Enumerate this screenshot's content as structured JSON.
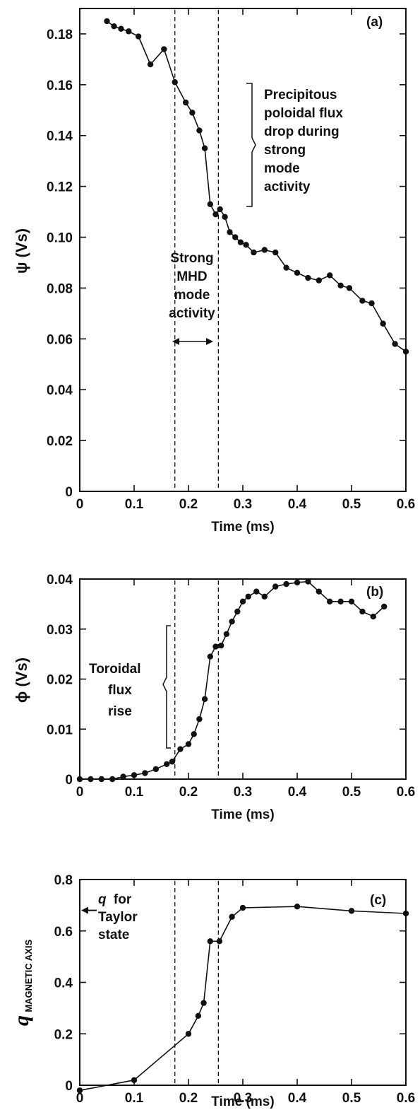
{
  "chart_data": [
    {
      "type": "line",
      "panel_label": "(a)",
      "ylabel": "ψ (Vs)",
      "xlabel": "Time (ms)",
      "xlim": [
        0,
        0.6
      ],
      "ylim": [
        0,
        0.19
      ],
      "xticks": [
        "0",
        "0.1",
        "0.2",
        "0.3",
        "0.4",
        "0.5",
        "0.6"
      ],
      "yticks": [
        "0",
        "0.02",
        "0.04",
        "0.06",
        "0.08",
        "0.10",
        "0.12",
        "0.14",
        "0.16",
        "0.18"
      ],
      "vlines": [
        0.175,
        0.255
      ],
      "annotations": {
        "right_brace_text": [
          "Precipitous",
          "poloidal flux",
          "drop during",
          "strong",
          "mode",
          "activity"
        ],
        "center_text": [
          "Strong",
          "MHD",
          "mode",
          "activity"
        ]
      },
      "series": [
        {
          "x": [
            0.05,
            0.063,
            0.076,
            0.09,
            0.108,
            0.13,
            0.155,
            0.175,
            0.195,
            0.207,
            0.22,
            0.23,
            0.24,
            0.25,
            0.258,
            0.267,
            0.276,
            0.286,
            0.296,
            0.306,
            0.32,
            0.34,
            0.36,
            0.38,
            0.4,
            0.42,
            0.44,
            0.46,
            0.48,
            0.496,
            0.52,
            0.537,
            0.558,
            0.58,
            0.6
          ],
          "y": [
            0.185,
            0.183,
            0.182,
            0.181,
            0.179,
            0.168,
            0.174,
            0.161,
            0.153,
            0.149,
            0.142,
            0.135,
            0.113,
            0.109,
            0.111,
            0.108,
            0.102,
            0.1,
            0.098,
            0.097,
            0.094,
            0.095,
            0.094,
            0.088,
            0.086,
            0.084,
            0.083,
            0.085,
            0.081,
            0.08,
            0.075,
            0.074,
            0.066,
            0.058,
            0.055
          ]
        }
      ]
    },
    {
      "type": "line",
      "panel_label": "(b)",
      "ylabel": "ϕ (Vs)",
      "xlabel": "Time (ms)",
      "xlim": [
        0,
        0.6
      ],
      "ylim": [
        0,
        0.04
      ],
      "xticks": [
        "0",
        "0.1",
        "0.2",
        "0.3",
        "0.4",
        "0.5",
        "0.6"
      ],
      "yticks": [
        "0",
        "0.01",
        "0.02",
        "0.03",
        "0.04"
      ],
      "vlines": [
        0.175,
        0.255
      ],
      "annotations": {
        "left_brace_text": [
          "Toroidal",
          "flux",
          "rise"
        ]
      },
      "series": [
        {
          "x": [
            0.0,
            0.02,
            0.04,
            0.06,
            0.08,
            0.1,
            0.12,
            0.14,
            0.16,
            0.17,
            0.185,
            0.2,
            0.21,
            0.22,
            0.23,
            0.24,
            0.25,
            0.26,
            0.27,
            0.28,
            0.29,
            0.3,
            0.31,
            0.325,
            0.34,
            0.36,
            0.38,
            0.4,
            0.42,
            0.44,
            0.46,
            0.48,
            0.5,
            0.52,
            0.54,
            0.56
          ],
          "y": [
            0.0,
            0.0,
            0.0,
            0.0,
            0.0005,
            0.0008,
            0.0012,
            0.002,
            0.003,
            0.0035,
            0.006,
            0.007,
            0.009,
            0.012,
            0.016,
            0.0245,
            0.0265,
            0.0267,
            0.029,
            0.0315,
            0.0335,
            0.0355,
            0.0365,
            0.0375,
            0.0365,
            0.0385,
            0.039,
            0.0393,
            0.0395,
            0.0375,
            0.0355,
            0.0355,
            0.0355,
            0.0335,
            0.0325,
            0.0345
          ]
        }
      ]
    },
    {
      "type": "line",
      "panel_label": "(c)",
      "ylabel_main": "q",
      "ylabel_sub": "MAGNETIC AXIS",
      "xlabel": "Time (ms)",
      "xlim": [
        0,
        0.6
      ],
      "ylim": [
        0,
        0.8
      ],
      "xticks": [
        "0",
        "0.1",
        "0.2",
        "0.3",
        "0.4",
        "0.5",
        "0.6"
      ],
      "yticks": [
        "0",
        "0.2",
        "0.4",
        "0.6",
        "0.8"
      ],
      "vlines": [
        0.175,
        0.255
      ],
      "taylor_q": 0.68,
      "annotations": {
        "arrow_text_italic": "q",
        "arrow_text": [
          "for",
          "Taylor",
          "state"
        ]
      },
      "series": [
        {
          "x": [
            0.0,
            0.1,
            0.2,
            0.218,
            0.228,
            0.24,
            0.257,
            0.28,
            0.3,
            0.4,
            0.5,
            0.6
          ],
          "y": [
            -0.02,
            0.02,
            0.2,
            0.27,
            0.32,
            0.56,
            0.56,
            0.655,
            0.69,
            0.695,
            0.678,
            0.668
          ]
        }
      ]
    }
  ]
}
